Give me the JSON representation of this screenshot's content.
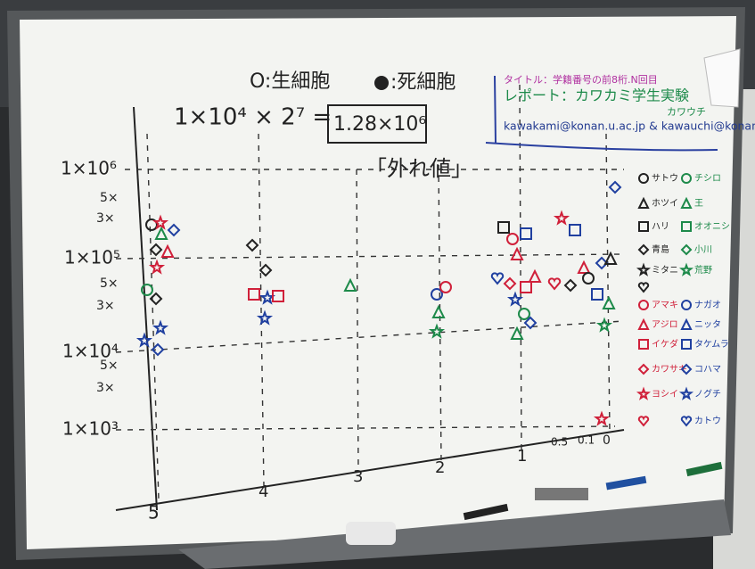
{
  "header": {
    "alive": "O:生細胞",
    "dead": ":死細胞",
    "formula": "1×10⁴ × 2⁷ =",
    "result": "1.28×10⁶",
    "outlier": "「外れ値」"
  },
  "note": {
    "title": "タイトル：学籍番号の前8桁.N回目",
    "report": "レポート：カワカミ学生実験",
    "sub": "カワウチ",
    "email": "kawakami@konan.u.ac.jp & kawauchi@konan-u.ac.jp"
  },
  "y_axis": {
    "labels": [
      "1×10⁶",
      "5×",
      "3×",
      "1×10⁵",
      "5×",
      "3×",
      "1×10⁴",
      "5×",
      "3×",
      "1×10³"
    ]
  },
  "x_axis": {
    "labels": [
      "5",
      "4",
      "3",
      "2",
      "1",
      "0.5",
      "0.1",
      "0"
    ]
  },
  "legend": {
    "entries": [
      "サトウ",
      "チシロ",
      "ホツイ",
      "王",
      "ハリ",
      "オオニシ",
      "青島",
      "小川",
      "ミタニ",
      "荒野",
      "アマキ",
      "ナガオ",
      "アジロ",
      "ニッタ",
      "イケダ",
      "タケムラ",
      "カワサキ",
      "コハマ",
      "ヨシイ",
      "ノグチ",
      "カトウ"
    ]
  }
}
